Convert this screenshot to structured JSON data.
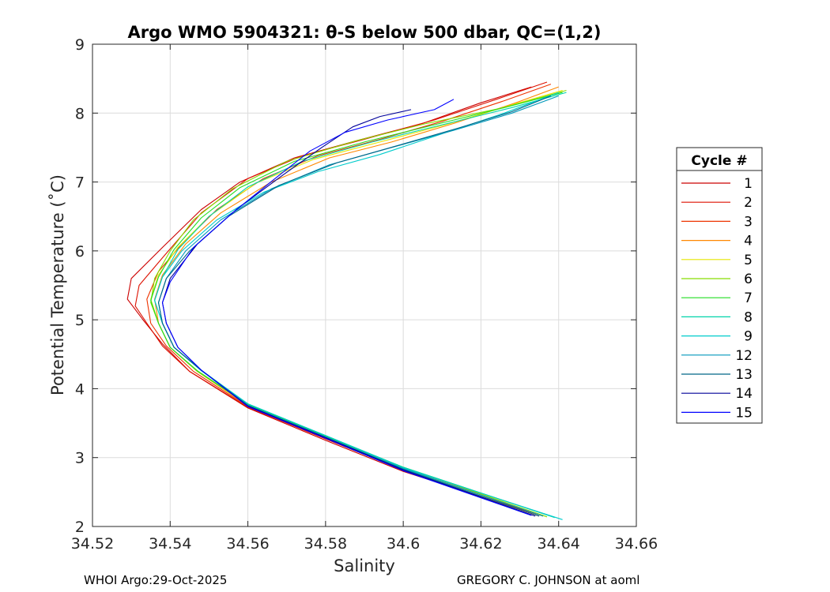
{
  "chart_data": {
    "type": "line",
    "title": "Argo WMO 5904321: θ-S below 500 dbar,  QC=(1,2)",
    "xlabel": "Salinity",
    "ylabel": "Potential Temperature (˚C)",
    "xlim": [
      34.52,
      34.66
    ],
    "ylim": [
      2,
      9
    ],
    "xticks": [
      34.52,
      34.54,
      34.56,
      34.58,
      34.6,
      34.62,
      34.64,
      34.66
    ],
    "xtick_labels": [
      "34.52",
      "34.54",
      "34.56",
      "34.58",
      "34.6",
      "34.62",
      "34.64",
      "34.66"
    ],
    "yticks": [
      2,
      3,
      4,
      5,
      6,
      7,
      8,
      9
    ],
    "ytick_labels": [
      "2",
      "3",
      "4",
      "5",
      "6",
      "7",
      "8",
      "9"
    ],
    "grid": true,
    "legend_title": "Cycle #",
    "legend_position": "right",
    "series": [
      {
        "name": "1",
        "color": "#cc0000",
        "points": [
          [
            34.636,
            2.15
          ],
          [
            34.6,
            2.8
          ],
          [
            34.58,
            3.25
          ],
          [
            34.56,
            3.72
          ],
          [
            34.545,
            4.25
          ],
          [
            34.538,
            4.65
          ],
          [
            34.533,
            5.0
          ],
          [
            34.529,
            5.3
          ],
          [
            34.53,
            5.6
          ],
          [
            34.538,
            6.05
          ],
          [
            34.548,
            6.6
          ],
          [
            34.558,
            7.0
          ],
          [
            34.572,
            7.35
          ],
          [
            34.588,
            7.6
          ],
          [
            34.605,
            7.85
          ],
          [
            34.62,
            8.15
          ],
          [
            34.633,
            8.38
          ]
        ]
      },
      {
        "name": "2",
        "color": "#dd1100",
        "points": [
          [
            34.635,
            2.15
          ],
          [
            34.6,
            2.82
          ],
          [
            34.58,
            3.27
          ],
          [
            34.56,
            3.73
          ],
          [
            34.545,
            4.25
          ],
          [
            34.538,
            4.62
          ],
          [
            34.534,
            4.95
          ],
          [
            34.531,
            5.2
          ],
          [
            34.532,
            5.5
          ],
          [
            34.538,
            5.9
          ],
          [
            34.548,
            6.55
          ],
          [
            34.56,
            7.05
          ],
          [
            34.574,
            7.38
          ],
          [
            34.59,
            7.62
          ],
          [
            34.608,
            7.9
          ],
          [
            34.624,
            8.2
          ],
          [
            34.637,
            8.45
          ]
        ]
      },
      {
        "name": "3",
        "color": "#ee3300",
        "points": [
          [
            34.634,
            2.17
          ],
          [
            34.6,
            2.82
          ],
          [
            34.58,
            3.28
          ],
          [
            34.56,
            3.74
          ],
          [
            34.546,
            4.25
          ],
          [
            34.539,
            4.62
          ],
          [
            34.535,
            4.95
          ],
          [
            34.534,
            5.3
          ],
          [
            34.537,
            5.7
          ],
          [
            34.543,
            6.1
          ],
          [
            34.552,
            6.6
          ],
          [
            34.564,
            7.05
          ],
          [
            34.578,
            7.38
          ],
          [
            34.594,
            7.62
          ],
          [
            34.61,
            7.88
          ],
          [
            34.626,
            8.18
          ],
          [
            34.638,
            8.42
          ]
        ]
      },
      {
        "name": "4",
        "color": "#ff8800",
        "points": [
          [
            34.636,
            2.16
          ],
          [
            34.6,
            2.84
          ],
          [
            34.58,
            3.29
          ],
          [
            34.56,
            3.75
          ],
          [
            34.547,
            4.25
          ],
          [
            34.54,
            4.6
          ],
          [
            34.537,
            4.95
          ],
          [
            34.536,
            5.3
          ],
          [
            34.538,
            5.65
          ],
          [
            34.544,
            6.1
          ],
          [
            34.553,
            6.55
          ],
          [
            34.566,
            7.0
          ],
          [
            34.581,
            7.35
          ],
          [
            34.597,
            7.58
          ],
          [
            34.613,
            7.85
          ],
          [
            34.629,
            8.15
          ],
          [
            34.64,
            8.38
          ]
        ]
      },
      {
        "name": "5",
        "color": "#e6e600",
        "points": [
          [
            34.637,
            2.17
          ],
          [
            34.6,
            2.85
          ],
          [
            34.58,
            3.3
          ],
          [
            34.56,
            3.76
          ],
          [
            34.547,
            4.25
          ],
          [
            34.54,
            4.6
          ],
          [
            34.537,
            4.95
          ],
          [
            34.535,
            5.3
          ],
          [
            34.537,
            5.65
          ],
          [
            34.542,
            6.05
          ],
          [
            34.55,
            6.5
          ],
          [
            34.562,
            6.98
          ],
          [
            34.577,
            7.33
          ],
          [
            34.594,
            7.58
          ],
          [
            34.612,
            7.85
          ],
          [
            34.628,
            8.12
          ],
          [
            34.641,
            8.33
          ]
        ]
      },
      {
        "name": "6",
        "color": "#88dd00",
        "points": [
          [
            34.637,
            2.14
          ],
          [
            34.6,
            2.86
          ],
          [
            34.58,
            3.31
          ],
          [
            34.56,
            3.77
          ],
          [
            34.547,
            4.25
          ],
          [
            34.54,
            4.6
          ],
          [
            34.537,
            4.95
          ],
          [
            34.535,
            5.25
          ],
          [
            34.536,
            5.6
          ],
          [
            34.54,
            6.0
          ],
          [
            34.546,
            6.45
          ],
          [
            34.556,
            6.9
          ],
          [
            34.57,
            7.3
          ],
          [
            34.588,
            7.6
          ],
          [
            34.606,
            7.85
          ],
          [
            34.626,
            8.08
          ],
          [
            34.642,
            8.33
          ]
        ]
      },
      {
        "name": "7",
        "color": "#22dd22",
        "points": [
          [
            34.638,
            2.15
          ],
          [
            34.6,
            2.86
          ],
          [
            34.58,
            3.31
          ],
          [
            34.56,
            3.77
          ],
          [
            34.547,
            4.26
          ],
          [
            34.54,
            4.6
          ],
          [
            34.537,
            4.95
          ],
          [
            34.535,
            5.28
          ],
          [
            34.537,
            5.62
          ],
          [
            34.541,
            6.02
          ],
          [
            34.548,
            6.48
          ],
          [
            34.558,
            6.92
          ],
          [
            34.572,
            7.3
          ],
          [
            34.59,
            7.58
          ],
          [
            34.608,
            7.83
          ],
          [
            34.626,
            8.08
          ],
          [
            34.641,
            8.3
          ]
        ]
      },
      {
        "name": "8",
        "color": "#00d4aa",
        "points": [
          [
            34.639,
            2.13
          ],
          [
            34.6,
            2.86
          ],
          [
            34.58,
            3.32
          ],
          [
            34.56,
            3.78
          ],
          [
            34.548,
            4.26
          ],
          [
            34.541,
            4.6
          ],
          [
            34.538,
            4.95
          ],
          [
            34.536,
            5.28
          ],
          [
            34.538,
            5.62
          ],
          [
            34.542,
            6.02
          ],
          [
            34.55,
            6.5
          ],
          [
            34.56,
            6.93
          ],
          [
            34.574,
            7.3
          ],
          [
            34.592,
            7.58
          ],
          [
            34.61,
            7.83
          ],
          [
            34.628,
            8.08
          ],
          [
            34.642,
            8.3
          ]
        ]
      },
      {
        "name": "9",
        "color": "#00cccc",
        "points": [
          [
            34.641,
            2.1
          ],
          [
            34.6,
            2.85
          ],
          [
            34.58,
            3.32
          ],
          [
            34.56,
            3.78
          ],
          [
            34.548,
            4.27
          ],
          [
            34.541,
            4.6
          ],
          [
            34.538,
            4.95
          ],
          [
            34.536,
            5.28
          ],
          [
            34.538,
            5.62
          ],
          [
            34.543,
            6.0
          ],
          [
            34.552,
            6.45
          ],
          [
            34.564,
            6.85
          ],
          [
            34.578,
            7.15
          ],
          [
            34.594,
            7.4
          ],
          [
            34.61,
            7.7
          ],
          [
            34.626,
            8.0
          ],
          [
            34.64,
            8.3
          ]
        ]
      },
      {
        "name": "12",
        "color": "#0099bb",
        "points": [
          [
            34.636,
            2.15
          ],
          [
            34.6,
            2.84
          ],
          [
            34.58,
            3.3
          ],
          [
            34.56,
            3.76
          ],
          [
            34.548,
            4.27
          ],
          [
            34.541,
            4.6
          ],
          [
            34.538,
            4.95
          ],
          [
            34.537,
            5.25
          ],
          [
            34.539,
            5.6
          ],
          [
            34.544,
            6.0
          ],
          [
            34.553,
            6.45
          ],
          [
            34.566,
            6.9
          ],
          [
            34.581,
            7.25
          ],
          [
            34.597,
            7.5
          ],
          [
            34.613,
            7.75
          ],
          [
            34.628,
            8.0
          ],
          [
            34.64,
            8.25
          ]
        ]
      },
      {
        "name": "13",
        "color": "#006688",
        "points": [
          [
            34.635,
            2.15
          ],
          [
            34.6,
            2.83
          ],
          [
            34.58,
            3.29
          ],
          [
            34.56,
            3.75
          ],
          [
            34.548,
            4.27
          ],
          [
            34.541,
            4.6
          ],
          [
            34.538,
            4.95
          ],
          [
            34.537,
            5.25
          ],
          [
            34.539,
            5.6
          ],
          [
            34.545,
            6.0
          ],
          [
            34.555,
            6.5
          ],
          [
            34.568,
            6.95
          ],
          [
            34.583,
            7.28
          ],
          [
            34.598,
            7.52
          ],
          [
            34.614,
            7.78
          ],
          [
            34.628,
            8.02
          ],
          [
            34.638,
            8.25
          ]
        ]
      },
      {
        "name": "14",
        "color": "#000099",
        "points": [
          [
            34.634,
            2.15
          ],
          [
            34.6,
            2.82
          ],
          [
            34.58,
            3.29
          ],
          [
            34.56,
            3.75
          ],
          [
            34.548,
            4.27
          ],
          [
            34.542,
            4.6
          ],
          [
            34.539,
            4.95
          ],
          [
            34.538,
            5.25
          ],
          [
            34.54,
            5.6
          ],
          [
            34.547,
            6.1
          ],
          [
            34.557,
            6.6
          ],
          [
            34.569,
            7.1
          ],
          [
            34.579,
            7.5
          ],
          [
            34.587,
            7.8
          ],
          [
            34.594,
            7.95
          ],
          [
            34.602,
            8.05
          ]
        ]
      },
      {
        "name": "15",
        "color": "#0000ff",
        "points": [
          [
            34.633,
            2.16
          ],
          [
            34.6,
            2.81
          ],
          [
            34.58,
            3.28
          ],
          [
            34.56,
            3.74
          ],
          [
            34.548,
            4.27
          ],
          [
            34.542,
            4.6
          ],
          [
            34.539,
            4.95
          ],
          [
            34.538,
            5.25
          ],
          [
            34.54,
            5.55
          ],
          [
            34.546,
            6.05
          ],
          [
            34.556,
            6.55
          ],
          [
            34.567,
            7.05
          ],
          [
            34.576,
            7.45
          ],
          [
            34.585,
            7.72
          ],
          [
            34.596,
            7.9
          ],
          [
            34.608,
            8.05
          ],
          [
            34.613,
            8.2
          ]
        ]
      }
    ]
  },
  "footer": {
    "left": "WHOI Argo:29-Oct-2025",
    "right": "GREGORY C. JOHNSON at aoml"
  }
}
